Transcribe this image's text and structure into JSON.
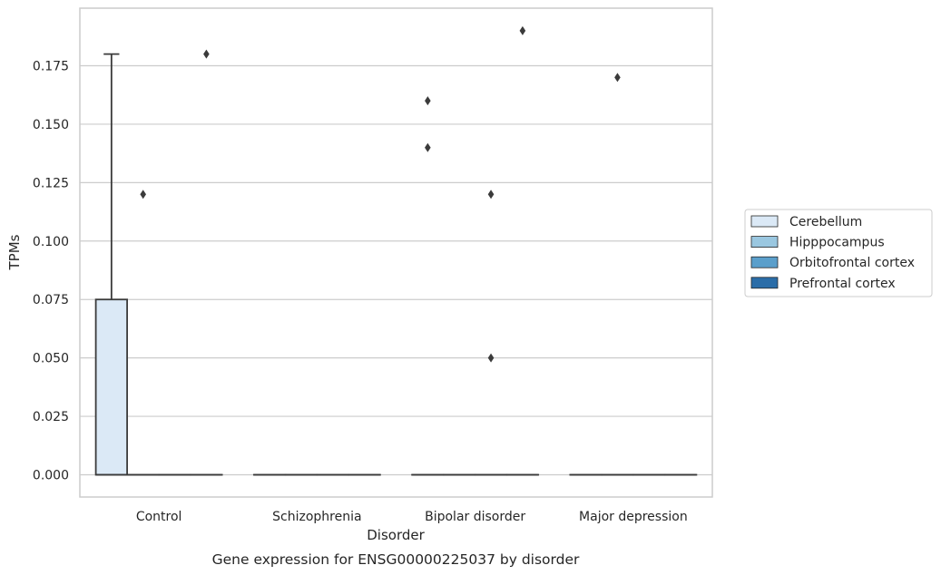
{
  "chart_data": {
    "type": "box",
    "categories": [
      "Control",
      "Schizophrenia",
      "Bipolar disorder",
      "Major depression"
    ],
    "xlabel": "Disorder",
    "ylabel": "TPMs",
    "caption": "Gene expression for ENSG00000225037 by disorder",
    "ylim": [
      -0.01,
      0.198
    ],
    "yticks": [
      0.0,
      0.025,
      0.05,
      0.075,
      0.1,
      0.125,
      0.15,
      0.175
    ],
    "ytick_labels": [
      "0.000",
      "0.025",
      "0.050",
      "0.075",
      "0.100",
      "0.125",
      "0.150",
      "0.175"
    ],
    "grid": "horizontal",
    "legend_position": "right",
    "series": [
      {
        "name": "Cerebellum",
        "color": "#dbe9f6",
        "boxes": [
          {
            "category": "Control",
            "q1": 0.0,
            "median": 0.0,
            "q3": 0.075,
            "whisker_low": 0.0,
            "whisker_high": 0.18,
            "outliers": []
          },
          {
            "category": "Schizophrenia",
            "q1": 0.0,
            "median": 0.0,
            "q3": 0.0,
            "whisker_low": 0.0,
            "whisker_high": 0.0,
            "outliers": []
          },
          {
            "category": "Bipolar disorder",
            "q1": 0.0,
            "median": 0.0,
            "q3": 0.0,
            "whisker_low": 0.0,
            "whisker_high": 0.0,
            "outliers": [
              0.14,
              0.16
            ]
          },
          {
            "category": "Major depression",
            "q1": 0.0,
            "median": 0.0,
            "q3": 0.0,
            "whisker_low": 0.0,
            "whisker_high": 0.0,
            "outliers": []
          }
        ]
      },
      {
        "name": "Hipppocampus",
        "color": "#9ac7e0",
        "boxes": [
          {
            "category": "Control",
            "q1": 0.0,
            "median": 0.0,
            "q3": 0.0,
            "whisker_low": 0.0,
            "whisker_high": 0.0,
            "outliers": [
              0.12
            ]
          },
          {
            "category": "Schizophrenia",
            "q1": 0.0,
            "median": 0.0,
            "q3": 0.0,
            "whisker_low": 0.0,
            "whisker_high": 0.0,
            "outliers": []
          },
          {
            "category": "Bipolar disorder",
            "q1": 0.0,
            "median": 0.0,
            "q3": 0.0,
            "whisker_low": 0.0,
            "whisker_high": 0.0,
            "outliers": []
          },
          {
            "category": "Major depression",
            "q1": 0.0,
            "median": 0.0,
            "q3": 0.0,
            "whisker_low": 0.0,
            "whisker_high": 0.0,
            "outliers": [
              0.17
            ]
          }
        ]
      },
      {
        "name": "Orbitofrontal cortex",
        "color": "#5b9fcb",
        "boxes": [
          {
            "category": "Control",
            "q1": 0.0,
            "median": 0.0,
            "q3": 0.0,
            "whisker_low": 0.0,
            "whisker_high": 0.0,
            "outliers": []
          },
          {
            "category": "Schizophrenia",
            "q1": 0.0,
            "median": 0.0,
            "q3": 0.0,
            "whisker_low": 0.0,
            "whisker_high": 0.0,
            "outliers": []
          },
          {
            "category": "Bipolar disorder",
            "q1": 0.0,
            "median": 0.0,
            "q3": 0.0,
            "whisker_low": 0.0,
            "whisker_high": 0.0,
            "outliers": [
              0.05,
              0.12
            ]
          },
          {
            "category": "Major depression",
            "q1": 0.0,
            "median": 0.0,
            "q3": 0.0,
            "whisker_low": 0.0,
            "whisker_high": 0.0,
            "outliers": []
          }
        ]
      },
      {
        "name": "Prefrontal cortex",
        "color": "#2b6da8",
        "boxes": [
          {
            "category": "Control",
            "q1": 0.0,
            "median": 0.0,
            "q3": 0.0,
            "whisker_low": 0.0,
            "whisker_high": 0.0,
            "outliers": [
              0.18
            ]
          },
          {
            "category": "Schizophrenia",
            "q1": 0.0,
            "median": 0.0,
            "q3": 0.0,
            "whisker_low": 0.0,
            "whisker_high": 0.0,
            "outliers": []
          },
          {
            "category": "Bipolar disorder",
            "q1": 0.0,
            "median": 0.0,
            "q3": 0.0,
            "whisker_low": 0.0,
            "whisker_high": 0.0,
            "outliers": [
              0.19
            ]
          },
          {
            "category": "Major depression",
            "q1": 0.0,
            "median": 0.0,
            "q3": 0.0,
            "whisker_low": 0.0,
            "whisker_high": 0.0,
            "outliers": []
          }
        ]
      }
    ],
    "colors": {
      "grid": "#cccccc",
      "frame": "#cccccc",
      "line": "#3b3b3b"
    }
  }
}
